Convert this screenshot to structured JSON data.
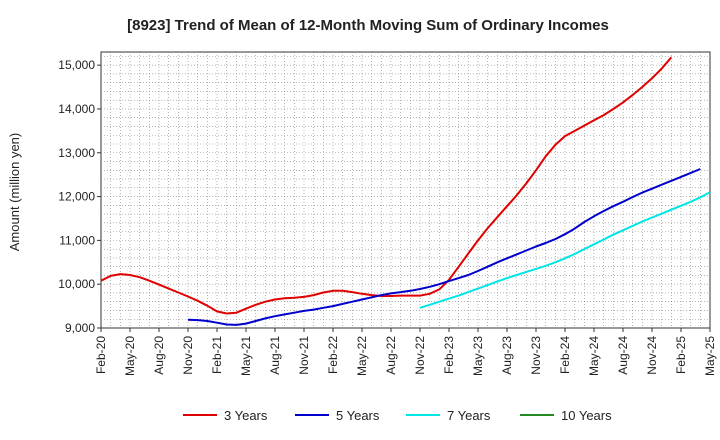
{
  "chart_data": {
    "type": "line",
    "title": "[8923]  Trend of Mean of 12-Month Moving Sum of Ordinary Incomes",
    "xlabel": "",
    "ylabel": "Amount (million yen)",
    "ylim": [
      9000,
      15300
    ],
    "yticks": [
      9000,
      10000,
      11000,
      12000,
      13000,
      14000,
      15000
    ],
    "ytick_labels": [
      "9,000",
      "10,000",
      "11,000",
      "12,000",
      "13,000",
      "14,000",
      "15,000"
    ],
    "x_start": "Feb-20",
    "x_end": "May-25",
    "x_months_total": 63,
    "xtick_labels": [
      "Feb-20",
      "May-20",
      "Aug-20",
      "Nov-20",
      "Feb-21",
      "May-21",
      "Aug-21",
      "Nov-21",
      "Feb-22",
      "May-22",
      "Aug-22",
      "Nov-22",
      "Feb-23",
      "May-23",
      "Aug-23",
      "Nov-23",
      "Feb-24",
      "May-24",
      "Aug-24",
      "Nov-24",
      "Feb-25",
      "May-25"
    ],
    "grid": true,
    "legend_position": "bottom",
    "series": [
      {
        "name": "3 Years",
        "color": "#e00000",
        "start_month_index": 0,
        "values": [
          10080,
          10190,
          10230,
          10210,
          10160,
          10080,
          9990,
          9900,
          9810,
          9720,
          9620,
          9510,
          9380,
          9330,
          9350,
          9440,
          9530,
          9600,
          9650,
          9680,
          9690,
          9710,
          9750,
          9810,
          9850,
          9850,
          9820,
          9780,
          9750,
          9730,
          9730,
          9740,
          9740,
          9740,
          9780,
          9880,
          10100,
          10400,
          10700,
          11000,
          11280,
          11530,
          11780,
          12030,
          12300,
          12600,
          12920,
          13180,
          13380,
          13500,
          13620,
          13740,
          13860,
          14000,
          14150,
          14320,
          14500,
          14700,
          14920,
          15180
        ]
      },
      {
        "name": "5 Years",
        "color": "#0000cc",
        "start_month_index": 9,
        "values": [
          9190,
          9180,
          9160,
          9120,
          9080,
          9070,
          9100,
          9160,
          9220,
          9270,
          9310,
          9350,
          9390,
          9420,
          9460,
          9500,
          9550,
          9600,
          9650,
          9700,
          9750,
          9790,
          9820,
          9850,
          9890,
          9940,
          10000,
          10070,
          10140,
          10210,
          10300,
          10400,
          10500,
          10590,
          10680,
          10770,
          10860,
          10940,
          11030,
          11140,
          11270,
          11420,
          11550,
          11670,
          11780,
          11880,
          11990,
          12090,
          12180,
          12270,
          12360,
          12450,
          12540,
          12630
        ]
      },
      {
        "name": "7 Years",
        "color": "#00e5e5",
        "start_month_index": 33,
        "values": [
          9460,
          9530,
          9600,
          9670,
          9740,
          9820,
          9900,
          9980,
          10060,
          10140,
          10210,
          10280,
          10350,
          10420,
          10500,
          10590,
          10690,
          10800,
          10910,
          11020,
          11130,
          11230,
          11330,
          11430,
          11520,
          11610,
          11700,
          11790,
          11880,
          11980,
          12100
        ]
      },
      {
        "name": "10 Years",
        "color": "#228b22",
        "start_month_index": null,
        "values": []
      }
    ]
  }
}
